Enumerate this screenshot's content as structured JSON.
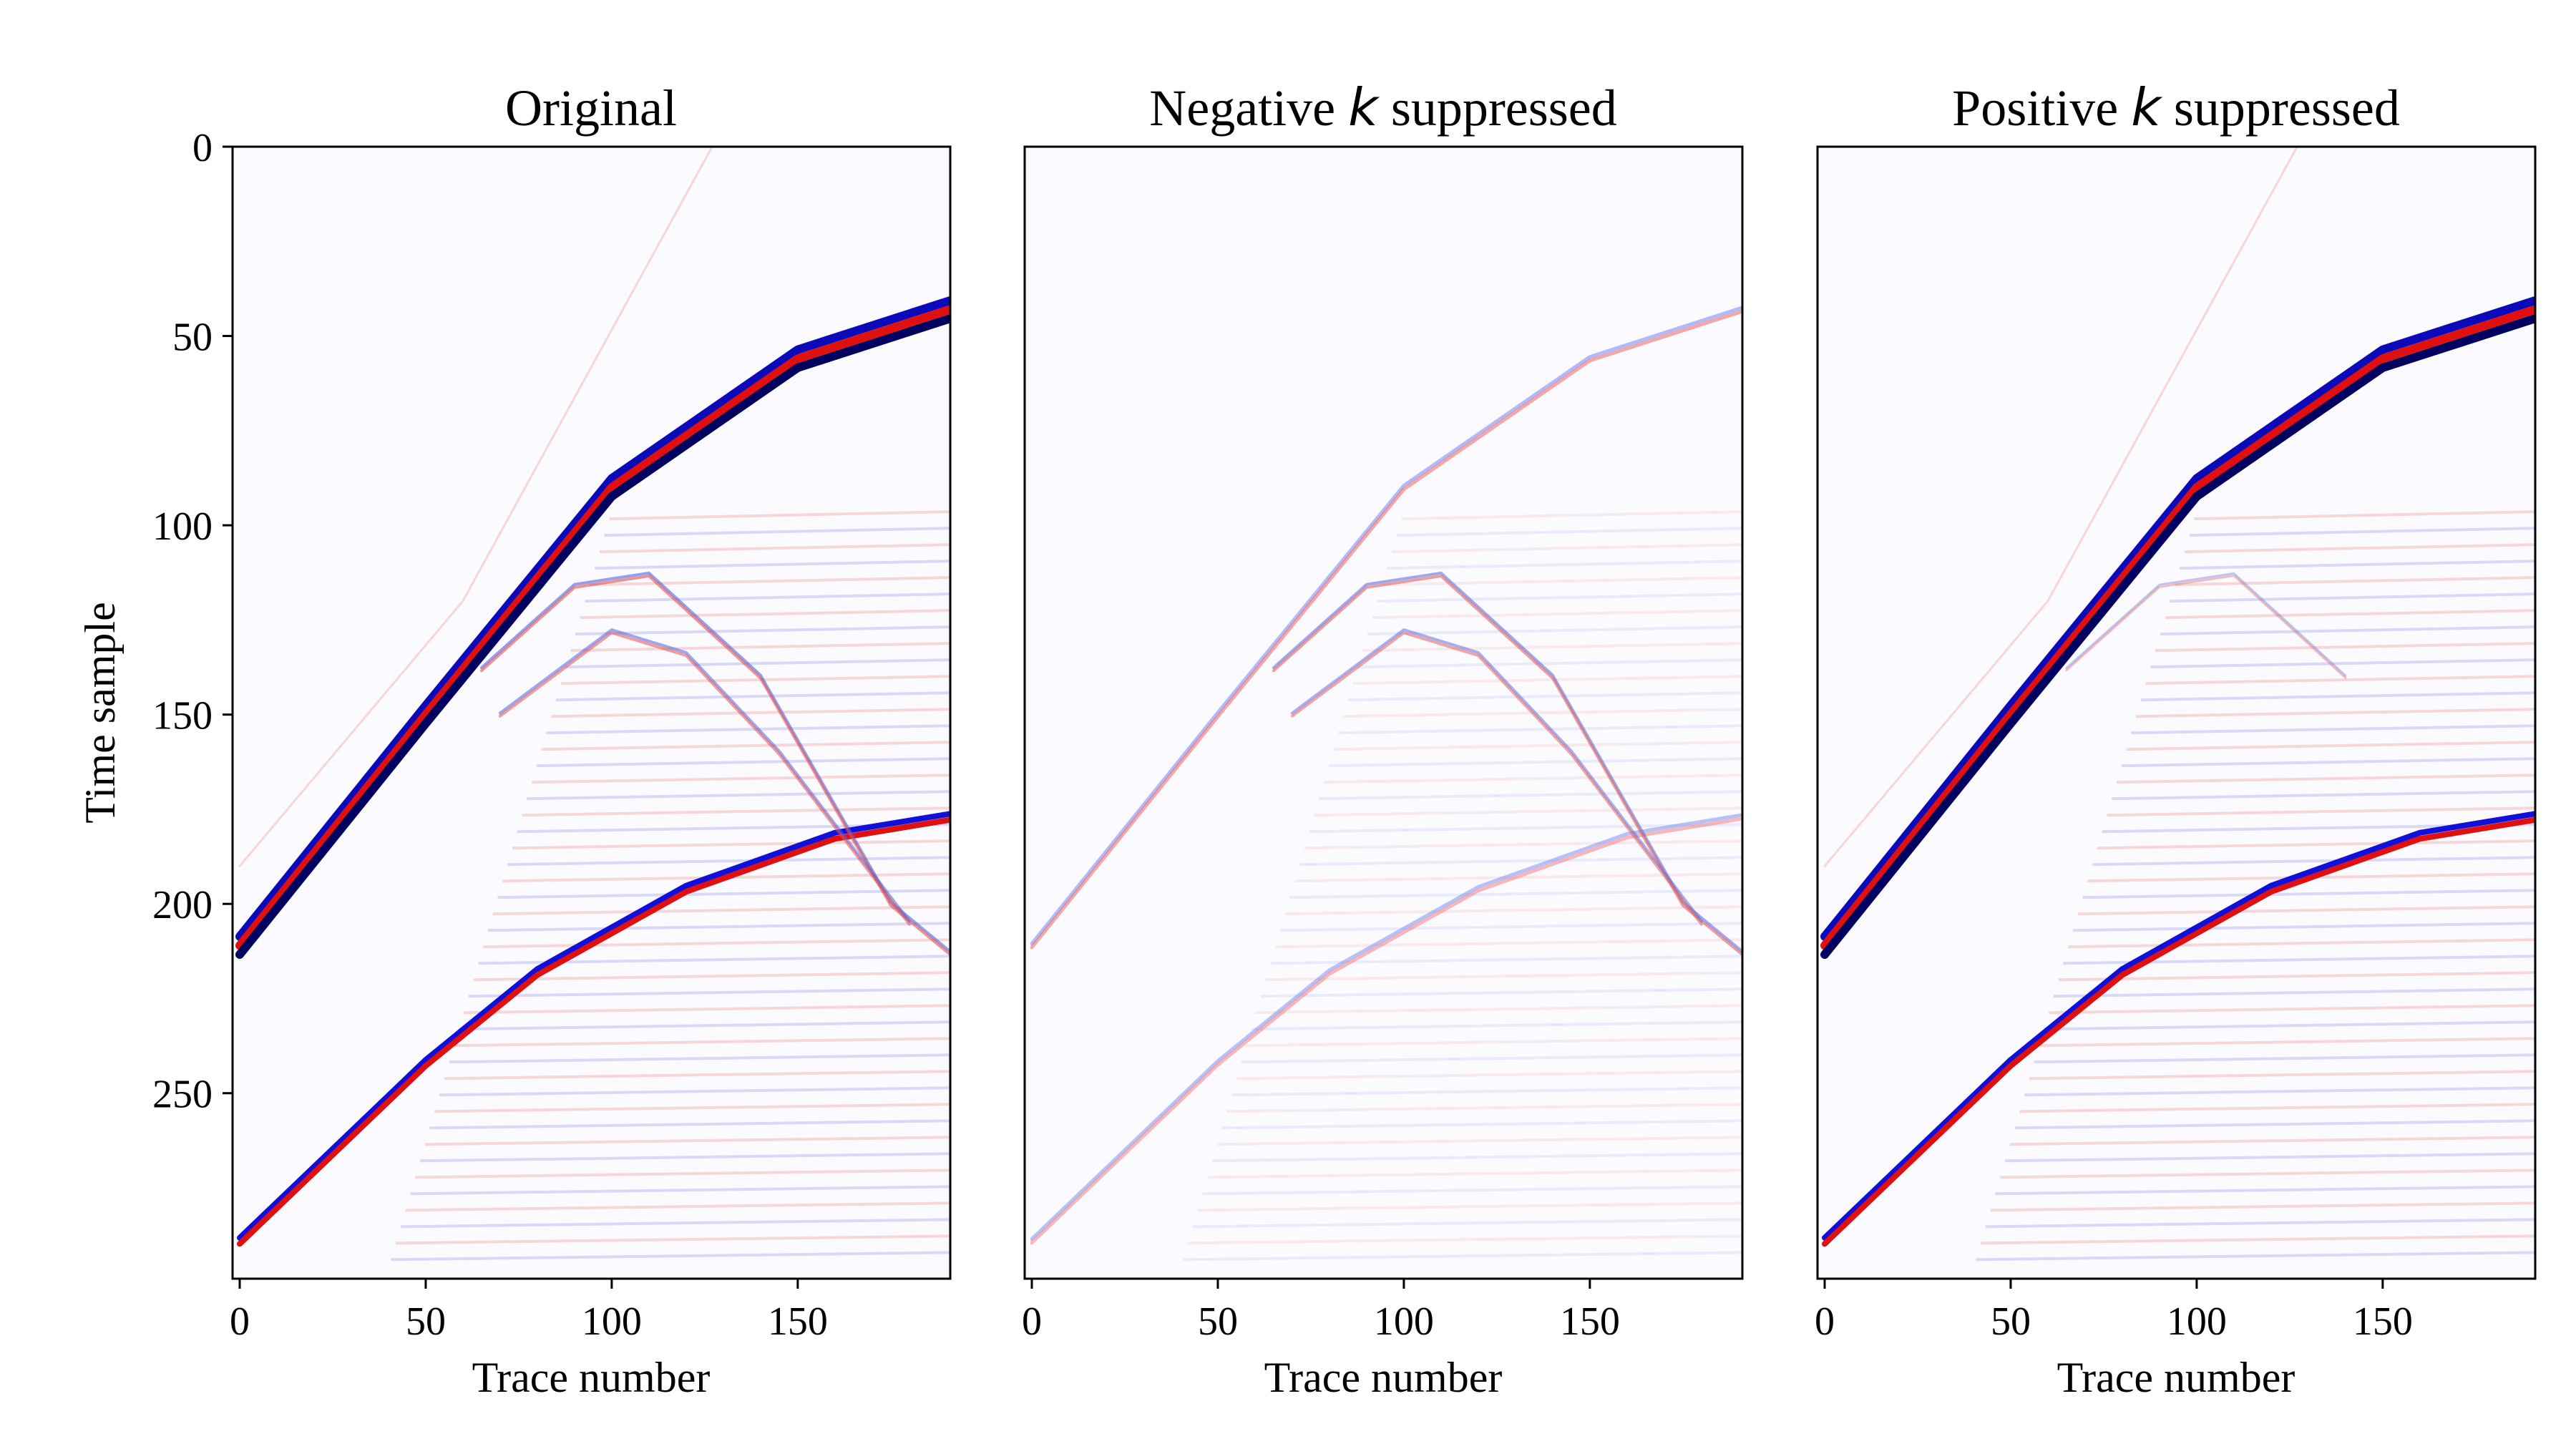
{
  "chart_data": [
    {
      "type": "heatmap",
      "title": "Original",
      "title_parts": {
        "pre": "Original",
        "var": "",
        "post": ""
      },
      "xlabel": "Trace number",
      "ylabel": "Time sample",
      "xlim": [
        0,
        191
      ],
      "ylim": [
        299,
        0
      ],
      "xticks": [
        "0",
        "50",
        "100",
        "150"
      ],
      "yticks": [
        "0",
        "50",
        "100",
        "150",
        "200",
        "250"
      ],
      "colormap": "seismic (blue-white-red)",
      "events": [
        {
          "name": "direct-wave-strong",
          "kind": "line",
          "points": [
            [
              0,
              211
            ],
            [
              50,
              150
            ],
            [
              100,
              90
            ],
            [
              150,
              56
            ],
            [
              191,
              43
            ]
          ],
          "amplitude": 1.0,
          "colors": [
            "#0a0ab8",
            "#e01010",
            "#000060"
          ],
          "width": 12
        },
        {
          "name": "reflection-strong",
          "kind": "line",
          "points": [
            [
              0,
              289
            ],
            [
              50,
              242
            ],
            [
              80,
              218
            ],
            [
              120,
              196
            ],
            [
              160,
              182
            ],
            [
              191,
              177
            ]
          ],
          "amplitude": 0.9,
          "colors": [
            "#1010d8",
            "#e01010"
          ],
          "width": 8
        },
        {
          "name": "diffraction-1",
          "kind": "curve",
          "points": [
            [
              65,
              138
            ],
            [
              90,
              116
            ],
            [
              110,
              113
            ],
            [
              140,
              140
            ],
            [
              175,
              200
            ],
            [
              191,
              213
            ]
          ],
          "amplitude": 0.35,
          "colors": [
            "#5060e0",
            "#e05050"
          ],
          "width": 4
        },
        {
          "name": "diffraction-2",
          "kind": "curve",
          "points": [
            [
              70,
              150
            ],
            [
              100,
              128
            ],
            [
              120,
              134
            ],
            [
              145,
              160
            ],
            [
              180,
              205
            ]
          ],
          "amplitude": 0.3,
          "colors": [
            "#5060e0",
            "#e05050"
          ],
          "width": 4
        },
        {
          "name": "steep-upgoing",
          "kind": "line",
          "points": [
            [
              0,
              190
            ],
            [
              60,
              120
            ],
            [
              127,
              0
            ]
          ],
          "amplitude": 0.15,
          "colors": [
            "#f0a0a0"
          ],
          "width": 3
        }
      ]
    },
    {
      "type": "heatmap",
      "title": "Negative k suppressed",
      "title_parts": {
        "pre": "Negative ",
        "var": "k",
        "post": " suppressed"
      },
      "xlabel": "Trace number",
      "ylabel": "",
      "xlim": [
        0,
        191
      ],
      "ylim": [
        299,
        0
      ],
      "xticks": [
        "0",
        "50",
        "100",
        "150"
      ],
      "yticks": [],
      "colormap": "seismic (blue-white-red)",
      "events": [
        {
          "name": "direct-wave-weak",
          "kind": "line",
          "points": [
            [
              0,
              211
            ],
            [
              50,
              150
            ],
            [
              100,
              90
            ],
            [
              150,
              56
            ],
            [
              191,
              43
            ]
          ],
          "amplitude": 0.35,
          "colors": [
            "#8090f0",
            "#f07070"
          ],
          "width": 5
        },
        {
          "name": "reflection-weak",
          "kind": "line",
          "points": [
            [
              0,
              289
            ],
            [
              50,
              242
            ],
            [
              80,
              218
            ],
            [
              120,
              196
            ],
            [
              160,
              182
            ],
            [
              191,
              177
            ]
          ],
          "amplitude": 0.3,
          "colors": [
            "#8090f0",
            "#f08080"
          ],
          "width": 5
        },
        {
          "name": "diffraction-1",
          "kind": "curve",
          "points": [
            [
              65,
              138
            ],
            [
              90,
              116
            ],
            [
              110,
              113
            ],
            [
              140,
              140
            ],
            [
              175,
              200
            ],
            [
              191,
              213
            ]
          ],
          "amplitude": 0.35,
          "colors": [
            "#6070e0",
            "#e06060"
          ],
          "width": 4
        },
        {
          "name": "diffraction-2",
          "kind": "curve",
          "points": [
            [
              70,
              150
            ],
            [
              100,
              128
            ],
            [
              120,
              134
            ],
            [
              145,
              160
            ],
            [
              180,
              205
            ]
          ],
          "amplitude": 0.3,
          "colors": [
            "#6070e0",
            "#e06060"
          ],
          "width": 4
        }
      ]
    },
    {
      "type": "heatmap",
      "title": "Positive k suppressed",
      "title_parts": {
        "pre": "Positive ",
        "var": "k",
        "post": " suppressed"
      },
      "xlabel": "Trace number",
      "ylabel": "",
      "xlim": [
        0,
        191
      ],
      "ylim": [
        299,
        0
      ],
      "xticks": [
        "0",
        "50",
        "100",
        "150"
      ],
      "yticks": [],
      "colormap": "seismic (blue-white-red)",
      "events": [
        {
          "name": "direct-wave-strong",
          "kind": "line",
          "points": [
            [
              0,
              211
            ],
            [
              50,
              150
            ],
            [
              100,
              90
            ],
            [
              150,
              56
            ],
            [
              191,
              43
            ]
          ],
          "amplitude": 1.0,
          "colors": [
            "#0a0ab8",
            "#e01010",
            "#000060"
          ],
          "width": 12
        },
        {
          "name": "reflection-strong",
          "kind": "line",
          "points": [
            [
              0,
              289
            ],
            [
              50,
              242
            ],
            [
              80,
              218
            ],
            [
              120,
              196
            ],
            [
              160,
              182
            ],
            [
              191,
              177
            ]
          ],
          "amplitude": 0.9,
          "colors": [
            "#1010d8",
            "#e01010"
          ],
          "width": 8
        },
        {
          "name": "diffraction-1",
          "kind": "curve",
          "points": [
            [
              65,
              138
            ],
            [
              90,
              116
            ],
            [
              110,
              113
            ],
            [
              140,
              140
            ]
          ],
          "amplitude": 0.2,
          "colors": [
            "#7080e0",
            "#e07070"
          ],
          "width": 3
        },
        {
          "name": "steep-upgoing",
          "kind": "line",
          "points": [
            [
              0,
              190
            ],
            [
              60,
              120
            ],
            [
              127,
              0
            ]
          ],
          "amplitude": 0.15,
          "colors": [
            "#f0a0a0"
          ],
          "width": 3
        }
      ]
    }
  ],
  "colors": {
    "positive": "#e01010",
    "negative": "#0a0ab8",
    "background": "#fbfbff",
    "faint_red": "#f4c8c8",
    "faint_blue": "#c8ccf4"
  }
}
